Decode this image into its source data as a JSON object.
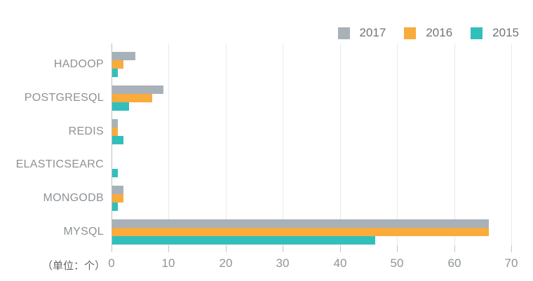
{
  "chart_data": {
    "type": "bar",
    "orientation": "horizontal",
    "title": "",
    "unit_label": "（单位：个）",
    "categories": [
      "HADOOP",
      "POSTGRESQL",
      "REDIS",
      "ELASTICSEARC",
      "MONGODB",
      "MYSQL"
    ],
    "series": [
      {
        "name": "2017",
        "color": "#A9B1B8",
        "values": [
          4,
          9,
          1,
          0,
          2,
          66
        ]
      },
      {
        "name": "2016",
        "color": "#F9AB3C",
        "values": [
          2,
          7,
          1,
          0,
          2,
          66
        ]
      },
      {
        "name": "2015",
        "color": "#32BFBC",
        "values": [
          1,
          3,
          2,
          1,
          1,
          46
        ]
      }
    ],
    "xlim": [
      0,
      70
    ],
    "x_ticks": [
      0,
      10,
      20,
      30,
      40,
      50,
      60,
      70
    ],
    "grid": true,
    "legend": {
      "position": "top-right",
      "entries": [
        "2017",
        "2016",
        "2015"
      ]
    }
  }
}
